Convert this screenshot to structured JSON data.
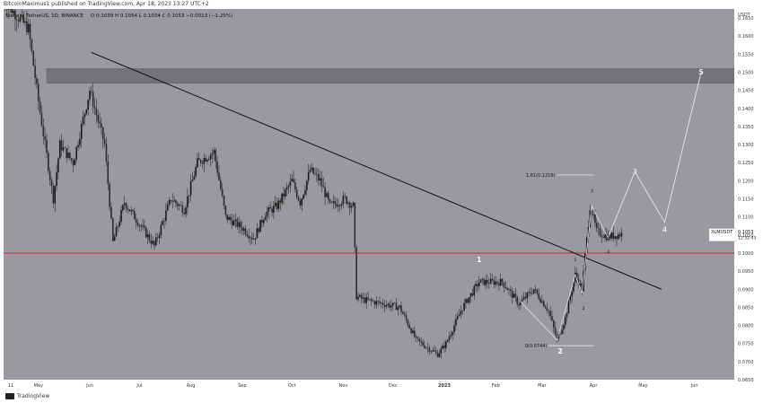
{
  "header": {
    "publisher_line": "BitcoinMaximus1 published on TradingView.com, Apr 18, 2023 13:27 UTC+2"
  },
  "legend": {
    "symbol_line": "Stellar / TetherUS, 1D, BINANCE",
    "ohlc": "O 0.1039  H 0.1054  L 0.1034  C 0.1053  −0.0013 (−1.25%)"
  },
  "footer": {
    "brand": "TradingView"
  },
  "colors": {
    "background": "#999a9f",
    "candle_up": "#1a1a1a",
    "candle_down": "#2b2b2b",
    "trendline": "#111111",
    "support": "#d0262c",
    "resistance_zone": "#6f7075",
    "wave_path": "#e6e6ea",
    "price_badge_bg": "#ffffff",
    "price_badge_text": "#111111"
  },
  "chart_data": {
    "type": "candlestick",
    "ticker": "XLMUSDT",
    "last_price": "0.1053",
    "countdown": "12:32:43",
    "y_unit": "USDT",
    "ylim": [
      0.065,
      0.1675
    ],
    "y_ticks": [
      "0.1650",
      "0.1600",
      "0.1550",
      "0.1500",
      "0.1450",
      "0.1400",
      "0.1350",
      "0.1300",
      "0.1250",
      "0.1200",
      "0.1150",
      "0.1100",
      "0.1050",
      "0.1000",
      "0.0950",
      "0.0900",
      "0.0850",
      "0.0800",
      "0.0750",
      "0.0700",
      "0.0650"
    ],
    "x_labels": [
      "11",
      "May",
      "Jun",
      "Jul",
      "Aug",
      "Sep",
      "Oct",
      "Nov",
      "Dec",
      "2023",
      "Feb",
      "Mar",
      "Apr",
      "May",
      "Jun"
    ],
    "price_path": [
      [
        "2022-04-10",
        0.17
      ],
      [
        "2022-04-25",
        0.162
      ],
      [
        "2022-05-01",
        0.142
      ],
      [
        "2022-05-10",
        0.115
      ],
      [
        "2022-05-14",
        0.13
      ],
      [
        "2022-05-22",
        0.125
      ],
      [
        "2022-06-01",
        0.145
      ],
      [
        "2022-06-10",
        0.13
      ],
      [
        "2022-06-15",
        0.103
      ],
      [
        "2022-06-22",
        0.114
      ],
      [
        "2022-07-01",
        0.108
      ],
      [
        "2022-07-10",
        0.102
      ],
      [
        "2022-07-20",
        0.115
      ],
      [
        "2022-07-28",
        0.112
      ],
      [
        "2022-08-05",
        0.125
      ],
      [
        "2022-08-15",
        0.128
      ],
      [
        "2022-08-22",
        0.11
      ],
      [
        "2022-09-01",
        0.107
      ],
      [
        "2022-09-08",
        0.104
      ],
      [
        "2022-09-15",
        0.111
      ],
      [
        "2022-09-22",
        0.113
      ],
      [
        "2022-10-01",
        0.12
      ],
      [
        "2022-10-06",
        0.114
      ],
      [
        "2022-10-12",
        0.123
      ],
      [
        "2022-10-18",
        0.12
      ],
      [
        "2022-10-24",
        0.113
      ],
      [
        "2022-11-02",
        0.115
      ],
      [
        "2022-11-07",
        0.113
      ],
      [
        "2022-11-09",
        0.088
      ],
      [
        "2022-11-14",
        0.087
      ],
      [
        "2022-11-25",
        0.086
      ],
      [
        "2022-12-05",
        0.085
      ],
      [
        "2022-12-15",
        0.076
      ],
      [
        "2022-12-28",
        0.072
      ],
      [
        "2023-01-02",
        0.075
      ],
      [
        "2023-01-12",
        0.085
      ],
      [
        "2023-01-22",
        0.092
      ],
      [
        "2023-02-05",
        0.092
      ],
      [
        "2023-02-15",
        0.086
      ],
      [
        "2023-02-24",
        0.09
      ],
      [
        "2023-03-05",
        0.084
      ],
      [
        "2023-03-10",
        0.076
      ],
      [
        "2023-03-15",
        0.082
      ],
      [
        "2023-03-21",
        0.094
      ],
      [
        "2023-03-25",
        0.09
      ],
      [
        "2023-03-30",
        0.113
      ],
      [
        "2023-04-03",
        0.106
      ],
      [
        "2023-04-10",
        0.1045
      ],
      [
        "2023-04-18",
        0.1053
      ]
    ],
    "trendline": {
      "from": [
        "2022-06-02",
        0.1555
      ],
      "to": [
        "2023-05-12",
        0.09
      ]
    },
    "support_level": 0.1,
    "resistance_zone": [
      0.147,
      0.151
    ],
    "fib_levels": [
      {
        "label": "1.61(0.1216)",
        "value": 0.1216,
        "from": "2023-03-10",
        "to": "2023-04-01"
      },
      {
        "label": "0(0.0744)",
        "value": 0.0744,
        "from": "2023-03-05",
        "to": "2023-04-01"
      }
    ],
    "projection_path": [
      [
        "2023-04-10",
        0.1045
      ],
      [
        "2023-04-26",
        0.1225
      ],
      [
        "2023-05-14",
        0.1085
      ],
      [
        "2023-06-05",
        0.15
      ]
    ],
    "projection_labels": [
      {
        "text": "3",
        "x": "2023-04-26",
        "y": 0.1225
      },
      {
        "text": "4",
        "x": "2023-05-14",
        "y": 0.1065
      },
      {
        "text": "5",
        "x": "2023-06-05",
        "y": 0.15
      }
    ],
    "wave_lines": [
      [
        [
          "2023-02-15",
          0.087
        ],
        [
          "2023-03-10",
          0.076
        ],
        [
          "2023-03-21",
          0.094
        ],
        [
          "2023-03-25",
          0.089
        ],
        [
          "2023-03-31",
          0.113
        ],
        [
          "2023-04-10",
          0.104
        ]
      ]
    ],
    "wave_labels": [
      {
        "text": "1",
        "x": "2023-01-22",
        "y": 0.0975,
        "size": "large"
      },
      {
        "text": "2",
        "x": "2023-03-12",
        "y": 0.0722,
        "size": "large"
      },
      {
        "text": "1",
        "x": "2023-03-21",
        "y": 0.0978,
        "size": "small"
      },
      {
        "text": "2",
        "x": "2023-03-26",
        "y": 0.0843,
        "size": "small"
      },
      {
        "text": "3",
        "x": "2023-03-31",
        "y": 0.1168,
        "size": "small"
      },
      {
        "text": "4",
        "x": "2023-04-10",
        "y": 0.1,
        "size": "small"
      }
    ]
  }
}
